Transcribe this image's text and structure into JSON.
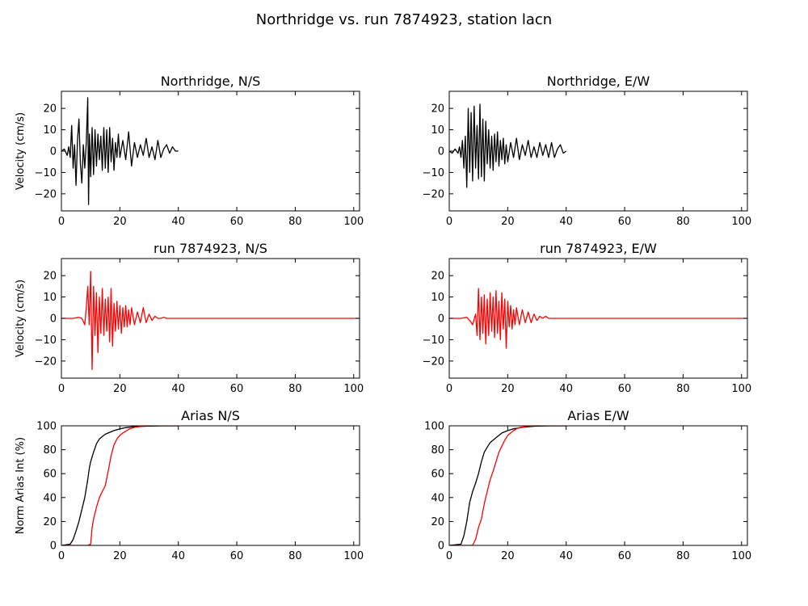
{
  "figure": {
    "title": "Northridge vs. run 7874923, station lacn"
  },
  "colors": {
    "observed": "#000000",
    "simulated": "#ff0000"
  },
  "chart_data": [
    {
      "id": "northridge-ns",
      "type": "line",
      "title": "Northridge, N/S",
      "xlabel": "",
      "ylabel": "Velocity (cm/s)",
      "xlim": [
        0,
        102
      ],
      "ylim": [
        -28,
        28
      ],
      "xticks": [
        "0",
        "20",
        "40",
        "60",
        "80",
        "100"
      ],
      "yticks": [
        "−20",
        "−10",
        "0",
        "10",
        "20"
      ],
      "grid": false,
      "series": [
        {
          "color": "#000000",
          "x": [
            0,
            1,
            2,
            2.5,
            3,
            3.5,
            4,
            4.5,
            5,
            5.5,
            6,
            6.5,
            7,
            7.5,
            8,
            8.5,
            9,
            9.3,
            9.6,
            10,
            10.5,
            11,
            11.5,
            12,
            12.5,
            13,
            13.5,
            14,
            14.5,
            15,
            15.5,
            16,
            16.5,
            17,
            17.5,
            18,
            18.5,
            19,
            19.5,
            20,
            21,
            22,
            23,
            24,
            25,
            26,
            27,
            28,
            29,
            30,
            31,
            32,
            33,
            34,
            35,
            36,
            37,
            38,
            39,
            40
          ],
          "values": [
            0,
            1,
            -2,
            2,
            -3,
            12,
            -8,
            3,
            -16,
            5,
            15,
            -6,
            -15,
            3,
            -8,
            4,
            25,
            -25,
            8,
            -12,
            11,
            -11,
            10,
            -7,
            8,
            -4,
            7,
            -9,
            11,
            -8,
            10,
            -10,
            11,
            -5,
            6,
            -9,
            4,
            -3,
            8,
            -3,
            5,
            -4,
            9,
            -7,
            4,
            -3,
            3,
            -2,
            6,
            -3,
            2,
            -4,
            5,
            -3,
            1,
            3,
            -1,
            2,
            0,
            0
          ]
        }
      ]
    },
    {
      "id": "northridge-ew",
      "type": "line",
      "title": "Northridge, E/W",
      "xlabel": "",
      "ylabel": "",
      "xlim": [
        0,
        102
      ],
      "ylim": [
        -28,
        28
      ],
      "xticks": [
        "0",
        "20",
        "40",
        "60",
        "80",
        "100"
      ],
      "yticks": [
        "−20",
        "−10",
        "0",
        "10",
        "20"
      ],
      "grid": false,
      "series": [
        {
          "color": "#000000",
          "x": [
            0,
            1,
            2,
            3,
            3.5,
            4,
            4.5,
            5,
            5.5,
            6,
            6.5,
            7,
            7.5,
            8,
            8.5,
            9,
            9.5,
            10,
            10.5,
            11,
            11.5,
            12,
            12.5,
            13,
            13.5,
            14,
            14.5,
            15,
            15.5,
            16,
            16.5,
            17,
            17.5,
            18,
            18.5,
            19,
            19.5,
            20,
            21,
            22,
            23,
            24,
            25,
            26,
            27,
            28,
            29,
            30,
            31,
            32,
            33,
            34,
            35,
            36,
            37,
            38,
            39,
            40
          ],
          "values": [
            0,
            -1,
            1,
            -1,
            2,
            -3,
            5,
            -8,
            7,
            -17,
            20,
            -10,
            18,
            -14,
            21,
            -8,
            12,
            -13,
            22,
            -12,
            15,
            -14,
            14,
            -6,
            10,
            -8,
            7,
            -9,
            8,
            -5,
            9,
            -7,
            5,
            -4,
            6,
            -6,
            3,
            -5,
            4,
            -3,
            6,
            -4,
            3,
            -2,
            5,
            -3,
            2,
            -3,
            4,
            -2,
            3,
            -3,
            4,
            -3,
            1,
            3,
            -1,
            0
          ]
        }
      ]
    },
    {
      "id": "run-ns",
      "type": "line",
      "title": "run 7874923, N/S",
      "xlabel": "",
      "ylabel": "Velocity (cm/s)",
      "xlim": [
        0,
        102
      ],
      "ylim": [
        -28,
        28
      ],
      "xticks": [
        "0",
        "20",
        "40",
        "60",
        "80",
        "100"
      ],
      "yticks": [
        "−20",
        "−10",
        "0",
        "10",
        "20"
      ],
      "grid": false,
      "series": [
        {
          "color": "#ff0000",
          "x": [
            0,
            2,
            4,
            6,
            7,
            8,
            8.5,
            9,
            9.5,
            10,
            10.5,
            11,
            11.5,
            12,
            12.5,
            13,
            13.5,
            14,
            14.5,
            15,
            15.5,
            16,
            16.5,
            17,
            17.5,
            18,
            18.5,
            19,
            19.5,
            20,
            20.5,
            21,
            21.5,
            22,
            22.5,
            23,
            23.5,
            24,
            25,
            26,
            27,
            28,
            29,
            30,
            31,
            32,
            33,
            34,
            35,
            36,
            38,
            40,
            50,
            60,
            70,
            80,
            90,
            100,
            102
          ],
          "values": [
            0,
            0,
            0,
            0.5,
            0,
            -3,
            5,
            15,
            -3,
            22,
            -24,
            15,
            -8,
            12,
            -16,
            10,
            -7,
            14,
            -8,
            9,
            -6,
            10,
            -11,
            14,
            -13,
            7,
            -6,
            8,
            -5,
            6,
            -7,
            5,
            -4,
            6,
            -4,
            4,
            -3,
            5,
            -3,
            3,
            -2,
            5,
            -2,
            2,
            -1,
            1,
            0,
            0,
            0.5,
            0,
            0,
            0,
            0,
            0,
            0,
            0,
            0,
            0,
            0
          ]
        }
      ]
    },
    {
      "id": "run-ew",
      "type": "line",
      "title": "run 7874923, E/W",
      "xlabel": "",
      "ylabel": "",
      "xlim": [
        0,
        102
      ],
      "ylim": [
        -28,
        28
      ],
      "xticks": [
        "0",
        "20",
        "40",
        "60",
        "80",
        "100"
      ],
      "yticks": [
        "−20",
        "−10",
        "0",
        "10",
        "20"
      ],
      "grid": false,
      "series": [
        {
          "color": "#ff0000",
          "x": [
            0,
            2,
            4,
            6,
            7,
            8,
            9,
            9.5,
            10,
            10.5,
            11,
            11.5,
            12,
            12.5,
            13,
            13.5,
            14,
            14.5,
            15,
            15.5,
            16,
            16.5,
            17,
            17.5,
            18,
            18.5,
            19,
            19.5,
            20,
            20.5,
            21,
            21.5,
            22,
            22.5,
            23,
            24,
            25,
            26,
            27,
            28,
            29,
            30,
            31,
            32,
            33,
            34,
            35,
            36,
            38,
            40,
            50,
            60,
            70,
            80,
            90,
            100,
            102
          ],
          "values": [
            0,
            0,
            0,
            0.5,
            -1,
            -3,
            2,
            -8,
            14,
            -10,
            10,
            -7,
            11,
            -12,
            9,
            -8,
            12,
            -6,
            10,
            -9,
            13,
            -7,
            8,
            -10,
            12,
            -5,
            9,
            -14,
            8,
            -4,
            6,
            -5,
            4,
            -3,
            5,
            -3,
            4,
            -2,
            3,
            -2,
            2,
            -1,
            1,
            0,
            1,
            0,
            0,
            0,
            0,
            0,
            0,
            0,
            0,
            0,
            0,
            0,
            0
          ]
        }
      ]
    },
    {
      "id": "arias-ns",
      "type": "line",
      "title": "Arias N/S",
      "xlabel": "",
      "ylabel": "Norm Arias Int (%)",
      "xlim": [
        0,
        102
      ],
      "ylim": [
        0,
        100
      ],
      "xticks": [
        "0",
        "20",
        "40",
        "60",
        "80",
        "100"
      ],
      "yticks": [
        "0",
        "20",
        "40",
        "60",
        "80",
        "100"
      ],
      "grid": false,
      "series": [
        {
          "color": "#000000",
          "x": [
            0,
            3,
            4,
            5,
            6,
            7,
            8,
            9,
            9.5,
            10,
            11,
            12,
            13,
            14,
            15,
            16,
            17,
            18,
            20,
            22,
            25,
            30,
            35,
            40
          ],
          "values": [
            0,
            1,
            5,
            12,
            20,
            30,
            40,
            55,
            64,
            70,
            78,
            85,
            89,
            91,
            93,
            94,
            95,
            96,
            97.5,
            98.5,
            99.3,
            99.8,
            100,
            100
          ]
        },
        {
          "color": "#ff0000",
          "x": [
            0,
            9,
            10,
            10.5,
            11,
            12,
            13,
            14,
            15,
            16,
            17,
            18,
            19,
            20,
            21,
            22,
            23,
            24,
            25,
            27,
            30,
            35,
            40
          ],
          "values": [
            0,
            0,
            1,
            15,
            22,
            32,
            40,
            45,
            50,
            62,
            75,
            84,
            89,
            92,
            94,
            95.5,
            97,
            98,
            98.7,
            99.4,
            100,
            100,
            100
          ]
        }
      ]
    },
    {
      "id": "arias-ew",
      "type": "line",
      "title": "Arias E/W",
      "xlabel": "",
      "ylabel": "",
      "xlim": [
        0,
        102
      ],
      "ylim": [
        0,
        100
      ],
      "xticks": [
        "0",
        "20",
        "40",
        "60",
        "80",
        "100"
      ],
      "yticks": [
        "0",
        "20",
        "40",
        "60",
        "80",
        "100"
      ],
      "grid": false,
      "series": [
        {
          "color": "#000000",
          "x": [
            0,
            4,
            5,
            6,
            7,
            8,
            9,
            10,
            11,
            12,
            13,
            14,
            15,
            16,
            17,
            18,
            19,
            20,
            22,
            25,
            28,
            30,
            35,
            40
          ],
          "values": [
            0,
            1,
            8,
            20,
            36,
            45,
            52,
            60,
            70,
            78,
            82,
            86,
            88,
            90,
            92,
            94,
            95,
            96,
            97.5,
            98.7,
            99.4,
            99.7,
            100,
            100
          ]
        },
        {
          "color": "#ff0000",
          "x": [
            0,
            8,
            9,
            10,
            11,
            12,
            13,
            14,
            15,
            16,
            17,
            18,
            19,
            20,
            21,
            22,
            23,
            24,
            25,
            27,
            30,
            35,
            40
          ],
          "values": [
            0,
            0,
            5,
            15,
            22,
            35,
            45,
            55,
            62,
            70,
            78,
            83,
            88,
            92,
            94,
            96,
            97.5,
            98.5,
            99,
            99.6,
            100,
            100,
            100
          ]
        }
      ]
    }
  ]
}
